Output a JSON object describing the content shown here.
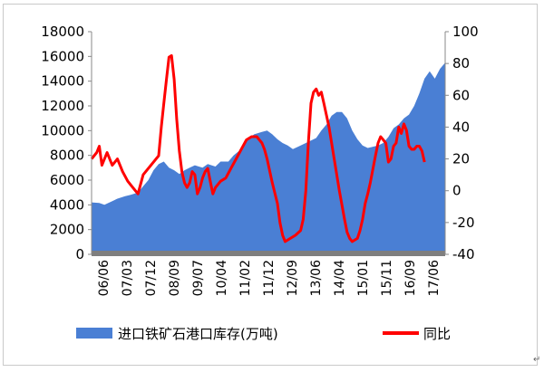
{
  "chart_data": {
    "type": "area+line",
    "title": "",
    "xlabel": "",
    "ylabel": "",
    "x_tick_labels": [
      "06/06",
      "07/03",
      "07/12",
      "08/09",
      "09/07",
      "10/04",
      "11/02",
      "11/12",
      "12/09",
      "13/06",
      "14/04",
      "15/01",
      "15/11",
      "16/09",
      "17/06"
    ],
    "y_left": {
      "lim": [
        0,
        18000
      ],
      "ticks": [
        "0",
        "2000",
        "4000",
        "6000",
        "8000",
        "10000",
        "12000",
        "14000",
        "16000",
        "18000"
      ]
    },
    "y_right": {
      "lim": [
        -40,
        100
      ],
      "ticks": [
        "-40",
        "-20",
        "0",
        "20",
        "40",
        "60",
        "80",
        "100"
      ]
    },
    "grid": false,
    "legend_position": "bottom",
    "x_index_range": [
      0,
      137
    ],
    "series": [
      {
        "name": "进口铁矿石港口库存(万吨)",
        "type": "area",
        "axis": "left",
        "color": "#4a7fd4",
        "points": [
          [
            0,
            4200
          ],
          [
            3,
            4150
          ],
          [
            5,
            4000
          ],
          [
            8,
            4300
          ],
          [
            10,
            4500
          ],
          [
            13,
            4700
          ],
          [
            15,
            4800
          ],
          [
            18,
            5000
          ],
          [
            20,
            5500
          ],
          [
            22,
            6000
          ],
          [
            24,
            6800
          ],
          [
            26,
            7300
          ],
          [
            28,
            7500
          ],
          [
            30,
            7000
          ],
          [
            32,
            6800
          ],
          [
            34,
            6500
          ],
          [
            36,
            6800
          ],
          [
            38,
            7000
          ],
          [
            40,
            7200
          ],
          [
            43,
            7000
          ],
          [
            45,
            7300
          ],
          [
            48,
            7100
          ],
          [
            50,
            7500
          ],
          [
            53,
            7500
          ],
          [
            55,
            8000
          ],
          [
            58,
            8500
          ],
          [
            60,
            9200
          ],
          [
            63,
            9700
          ],
          [
            66,
            9900
          ],
          [
            68,
            10000
          ],
          [
            70,
            9700
          ],
          [
            72,
            9300
          ],
          [
            74,
            9000
          ],
          [
            76,
            8800
          ],
          [
            78,
            8500
          ],
          [
            80,
            8700
          ],
          [
            83,
            9000
          ],
          [
            85,
            9200
          ],
          [
            87,
            9400
          ],
          [
            89,
            10000
          ],
          [
            91,
            10500
          ],
          [
            93,
            11200
          ],
          [
            95,
            11500
          ],
          [
            97,
            11500
          ],
          [
            99,
            11000
          ],
          [
            101,
            10000
          ],
          [
            103,
            9300
          ],
          [
            105,
            8800
          ],
          [
            107,
            8600
          ],
          [
            109,
            8700
          ],
          [
            111,
            8800
          ],
          [
            113,
            9000
          ],
          [
            115,
            9500
          ],
          [
            117,
            10200
          ],
          [
            119,
            10500
          ],
          [
            121,
            11000
          ],
          [
            123,
            11300
          ],
          [
            125,
            12000
          ],
          [
            127,
            13000
          ],
          [
            129,
            14200
          ],
          [
            131,
            14800
          ],
          [
            133,
            14200
          ],
          [
            135,
            15000
          ],
          [
            137,
            15500
          ]
        ]
      },
      {
        "name": "同比",
        "type": "line",
        "axis": "right",
        "color": "#ff0000",
        "points": [
          [
            0,
            20
          ],
          [
            2,
            24
          ],
          [
            3,
            28
          ],
          [
            4,
            16
          ],
          [
            6,
            24
          ],
          [
            8,
            16
          ],
          [
            10,
            20
          ],
          [
            12,
            12
          ],
          [
            14,
            6
          ],
          [
            16,
            2
          ],
          [
            18,
            -2
          ],
          [
            20,
            10
          ],
          [
            22,
            14
          ],
          [
            24,
            18
          ],
          [
            26,
            22
          ],
          [
            27,
            40
          ],
          [
            28,
            55
          ],
          [
            29,
            70
          ],
          [
            30,
            84
          ],
          [
            31,
            85
          ],
          [
            32,
            70
          ],
          [
            33,
            45
          ],
          [
            34,
            25
          ],
          [
            35,
            12
          ],
          [
            36,
            5
          ],
          [
            37,
            2
          ],
          [
            38,
            5
          ],
          [
            39,
            12
          ],
          [
            40,
            10
          ],
          [
            41,
            -2
          ],
          [
            42,
            2
          ],
          [
            43,
            8
          ],
          [
            44,
            12
          ],
          [
            45,
            14
          ],
          [
            46,
            6
          ],
          [
            47,
            -2
          ],
          [
            48,
            2
          ],
          [
            50,
            6
          ],
          [
            52,
            8
          ],
          [
            54,
            14
          ],
          [
            56,
            20
          ],
          [
            58,
            26
          ],
          [
            60,
            32
          ],
          [
            62,
            34
          ],
          [
            64,
            34
          ],
          [
            66,
            30
          ],
          [
            67,
            26
          ],
          [
            68,
            20
          ],
          [
            70,
            5
          ],
          [
            72,
            -8
          ],
          [
            73,
            -20
          ],
          [
            74,
            -28
          ],
          [
            75,
            -32
          ],
          [
            77,
            -30
          ],
          [
            79,
            -28
          ],
          [
            81,
            -25
          ],
          [
            82,
            -18
          ],
          [
            83,
            0
          ],
          [
            84,
            30
          ],
          [
            85,
            55
          ],
          [
            86,
            62
          ],
          [
            87,
            64
          ],
          [
            88,
            60
          ],
          [
            89,
            62
          ],
          [
            90,
            55
          ],
          [
            92,
            40
          ],
          [
            94,
            20
          ],
          [
            96,
            0
          ],
          [
            98,
            -18
          ],
          [
            99,
            -26
          ],
          [
            100,
            -30
          ],
          [
            101,
            -32
          ],
          [
            103,
            -30
          ],
          [
            104,
            -25
          ],
          [
            105,
            -18
          ],
          [
            106,
            -8
          ],
          [
            107,
            -2
          ],
          [
            108,
            5
          ],
          [
            110,
            22
          ],
          [
            111,
            30
          ],
          [
            112,
            34
          ],
          [
            113,
            32
          ],
          [
            114,
            30
          ],
          [
            115,
            18
          ],
          [
            116,
            20
          ],
          [
            117,
            28
          ],
          [
            118,
            30
          ],
          [
            119,
            40
          ],
          [
            120,
            36
          ],
          [
            121,
            42
          ],
          [
            122,
            38
          ],
          [
            123,
            28
          ],
          [
            124,
            26
          ],
          [
            125,
            26
          ],
          [
            126,
            28
          ],
          [
            127,
            28
          ],
          [
            128,
            25
          ],
          [
            129,
            18
          ]
        ]
      }
    ]
  }
}
